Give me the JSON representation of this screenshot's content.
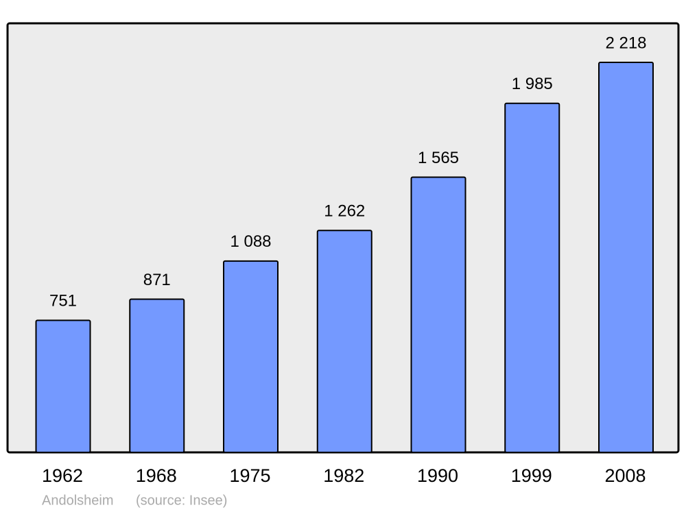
{
  "chart_data": {
    "type": "bar",
    "categories": [
      "1962",
      "1968",
      "1975",
      "1982",
      "1990",
      "1999",
      "2008"
    ],
    "values": [
      751,
      871,
      1088,
      1262,
      1565,
      1985,
      2218
    ],
    "value_labels": [
      "751",
      "871",
      "1 088",
      "1 262",
      "1 565",
      "1 985",
      "2 218"
    ],
    "color": "#7499ff",
    "place": "Andolsheim",
    "source": "(source: Insee)"
  }
}
